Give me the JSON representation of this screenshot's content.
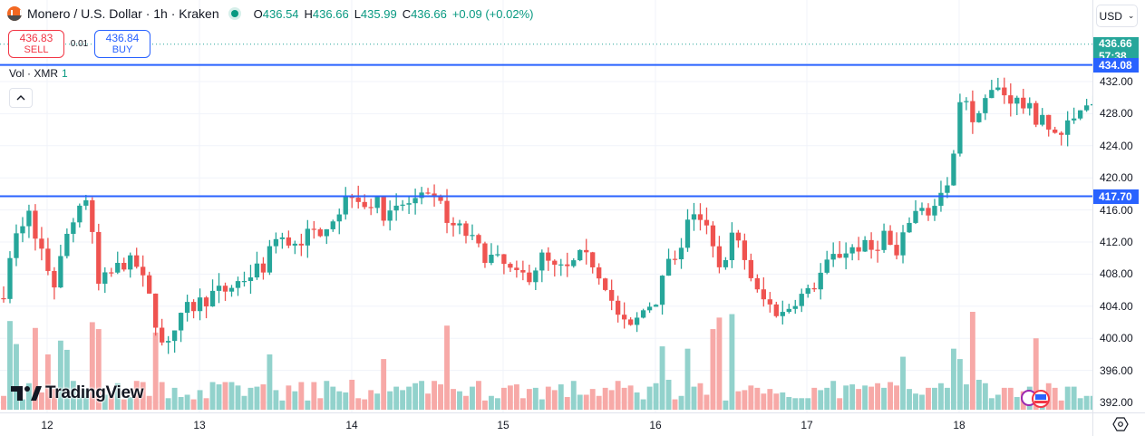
{
  "header": {
    "symbol_title": "Monero / U.S. Dollar · 1h · Kraken",
    "ohlc": {
      "o_label": "O",
      "o": "436.54",
      "h_label": "H",
      "h": "436.66",
      "l_label": "L",
      "l": "435.99",
      "c_label": "C",
      "c": "436.66",
      "change": "+0.09 (+0.02%)"
    }
  },
  "trade": {
    "sell_price": "436.83",
    "sell_label": "SELL",
    "spread": "0.01",
    "buy_price": "436.84",
    "buy_label": "BUY"
  },
  "volume_legend": {
    "label": "Vol · XMR",
    "value": "1"
  },
  "currency_selector": "USD",
  "branding": "TradingView",
  "price_scale": {
    "ticks": [
      "432.00",
      "428.00",
      "424.00",
      "420.00",
      "416.00",
      "412.00",
      "408.00",
      "404.00",
      "400.00",
      "396.00",
      "392.00"
    ],
    "last_price_label": "436.66",
    "countdown": "57:38",
    "line_labels": [
      "434.08",
      "417.70"
    ]
  },
  "time_axis": {
    "labels": [
      "12",
      "13",
      "14",
      "15",
      "16",
      "17",
      "18"
    ]
  },
  "colors": {
    "up": "#26a69a",
    "down": "#ef5350",
    "up_volume": "#92d2cc",
    "down_volume": "#f7a9a7",
    "horizontal_line": "#2962ff",
    "grid": "#f0f3fa"
  },
  "chart_data": {
    "type": "candlestick",
    "title": "Monero / U.S. Dollar · 1h · Kraken",
    "xlabel": "",
    "ylabel": "USD",
    "ylim": [
      390.8,
      441.2
    ],
    "x_tick_labels": [
      "12",
      "13",
      "14",
      "15",
      "16",
      "17",
      "18"
    ],
    "y_tick_labels": [
      432,
      428,
      424,
      420,
      416,
      412,
      408,
      404,
      400,
      396,
      392
    ],
    "grid": true,
    "horizontal_lines": [
      434.08,
      417.7
    ],
    "last_price": 436.66,
    "candles": []
  }
}
